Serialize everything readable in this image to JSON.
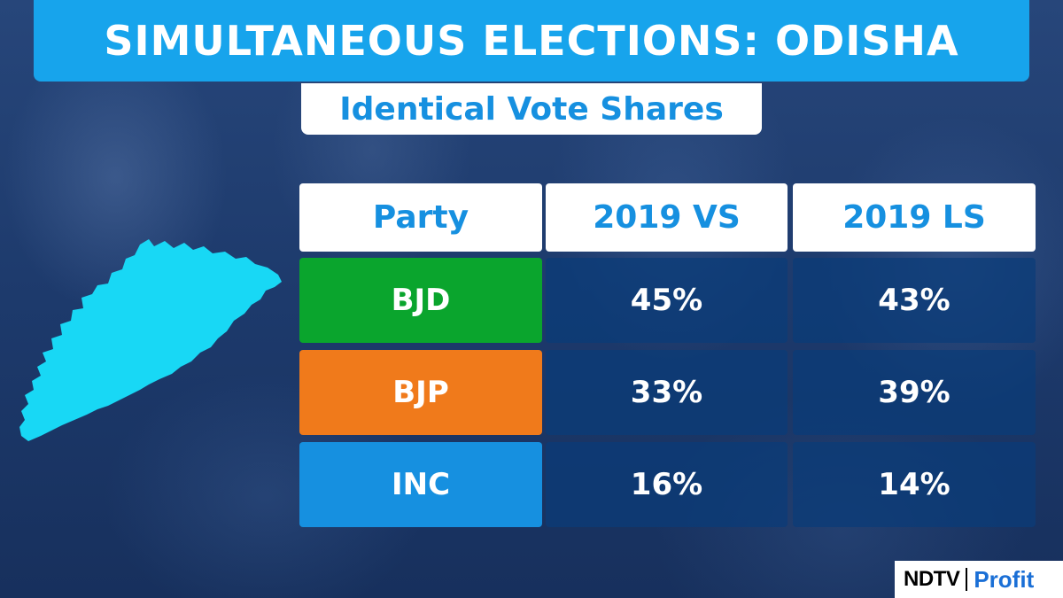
{
  "header": {
    "title": "SIMULTANEOUS ELECTIONS: ODISHA",
    "subtitle": "Identical Vote Shares"
  },
  "table": {
    "columns": [
      "Party",
      "2019 VS",
      "2019 LS"
    ],
    "rows": [
      {
        "party": "BJD",
        "vs": "45%",
        "ls": "43%",
        "color": "#0aa52d"
      },
      {
        "party": "BJP",
        "vs": "33%",
        "ls": "39%",
        "color": "#f07a1b"
      },
      {
        "party": "INC",
        "vs": "16%",
        "ls": "14%",
        "color": "#1690e0"
      }
    ]
  },
  "map": {
    "region": "Odisha",
    "icon": "state-map-icon",
    "color": "#18d8f5"
  },
  "logo": {
    "brand": "NDTV",
    "product": "Profit"
  },
  "colors": {
    "accent": "#17a4ec",
    "subtitle": "#1690e0"
  }
}
